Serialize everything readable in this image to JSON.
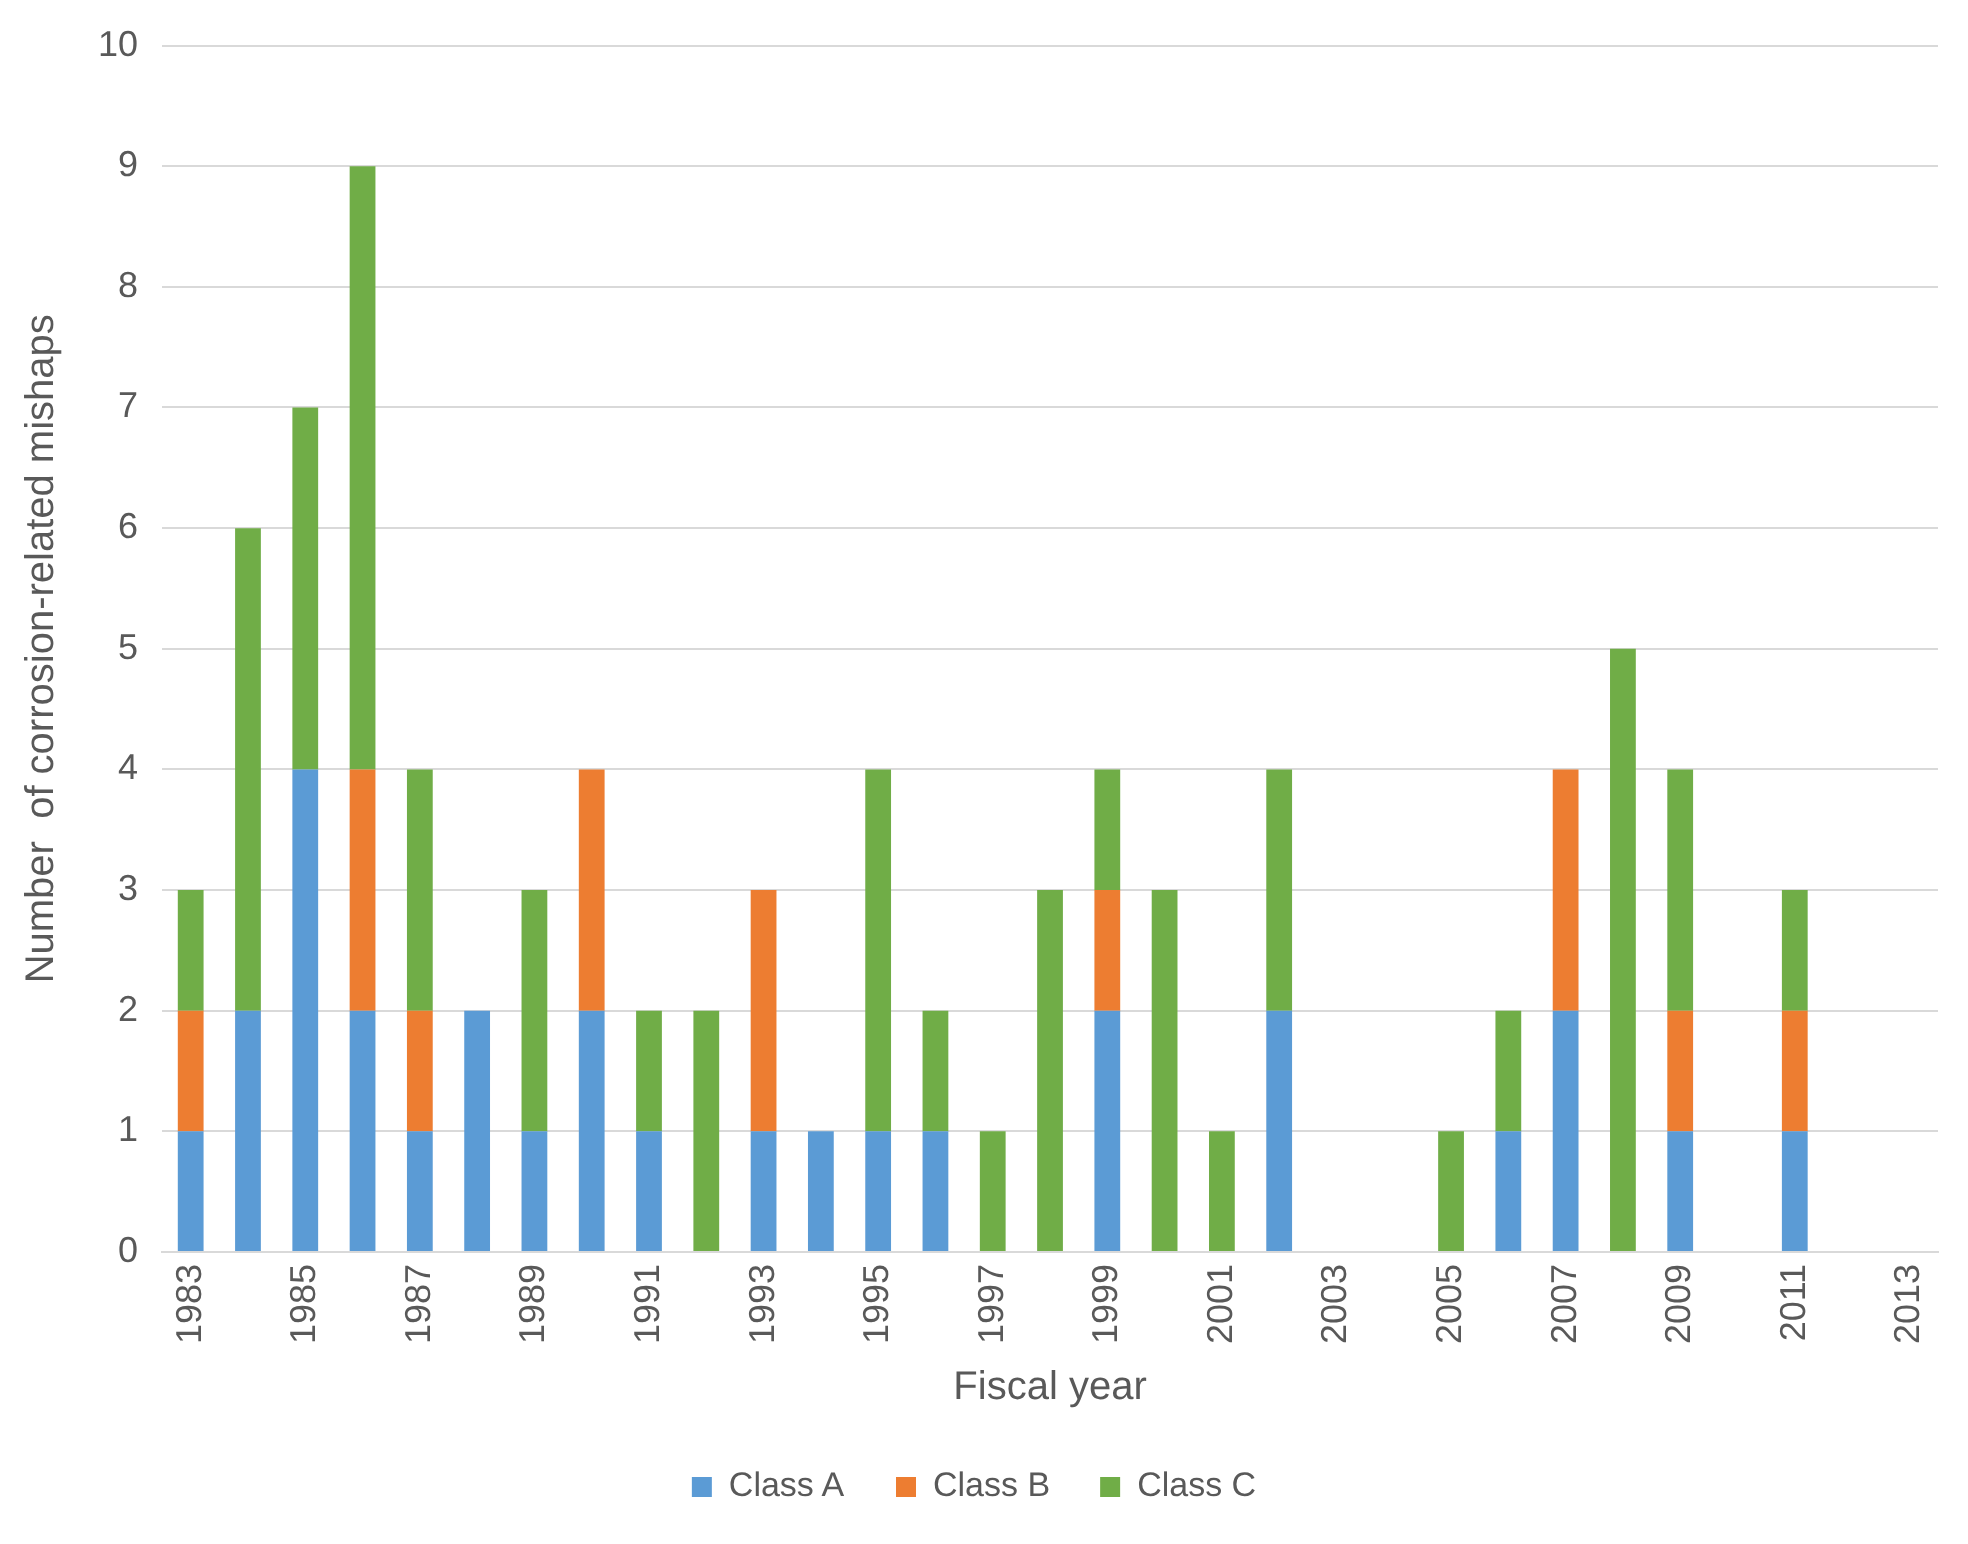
{
  "chart_data": {
    "type": "bar",
    "stacked": true,
    "xlabel": "Fiscal year",
    "ylabel": "Number  of corrosion-related mishaps",
    "categories": [
      "1983",
      null,
      "1985",
      null,
      "1987",
      null,
      "1989",
      null,
      "1991",
      null,
      "1993",
      null,
      "1995",
      null,
      "1997",
      null,
      "1999",
      null,
      "2001",
      null,
      "2003",
      null,
      "2005",
      null,
      "2007",
      null,
      "2009",
      null,
      "2011",
      null,
      "2013"
    ],
    "series": [
      {
        "name": "Class A",
        "color": "#5b9bd5",
        "values": [
          1,
          2,
          4,
          2,
          1,
          2,
          1,
          2,
          1,
          0,
          1,
          1,
          1,
          1,
          0,
          0,
          2,
          0,
          0,
          2,
          0,
          0,
          0,
          1,
          2,
          0,
          1,
          0,
          1,
          0,
          0
        ]
      },
      {
        "name": "Class B",
        "color": "#ed7d31",
        "values": [
          1,
          0,
          0,
          2,
          1,
          0,
          0,
          2,
          0,
          0,
          2,
          0,
          0,
          0,
          0,
          0,
          1,
          0,
          0,
          0,
          0,
          0,
          0,
          0,
          2,
          0,
          1,
          0,
          1,
          0,
          0
        ]
      },
      {
        "name": "Class C",
        "color": "#70ad47",
        "values": [
          1,
          4,
          3,
          5,
          2,
          0,
          2,
          0,
          1,
          2,
          0,
          0,
          3,
          1,
          1,
          3,
          1,
          3,
          1,
          2,
          0,
          0,
          1,
          1,
          0,
          5,
          2,
          0,
          1,
          0,
          0
        ]
      }
    ],
    "ylim": [
      0,
      10
    ],
    "yticks": [
      0,
      1,
      2,
      3,
      4,
      5,
      6,
      7,
      8,
      9,
      10
    ],
    "grid": "y",
    "legend": "bottom"
  }
}
